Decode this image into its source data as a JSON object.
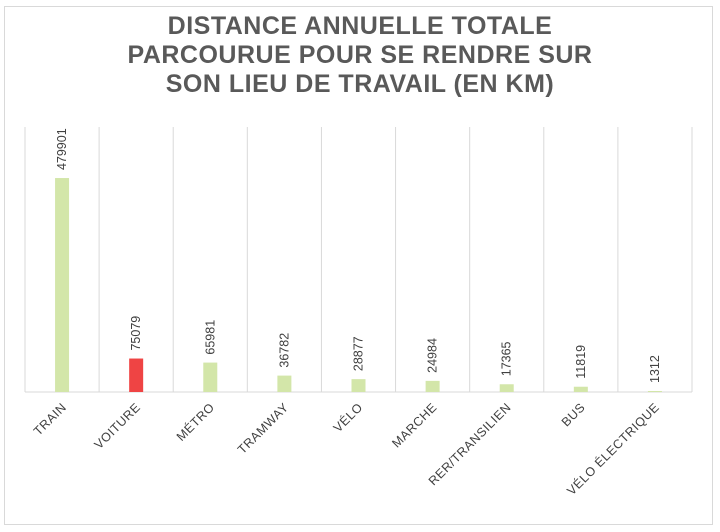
{
  "chart_data": {
    "type": "bar",
    "title_lines": [
      "DISTANCE ANNUELLE TOTALE",
      "PARCOURUE POUR SE RENDRE SUR",
      "SON LIEU DE TRAVAIL (EN KM)"
    ],
    "categories": [
      "TRAIN",
      "VOITURE",
      "MÉTRO",
      "TRAMWAY",
      "VÉLO",
      "MARCHE",
      "RER/TRANSILIEN",
      "BUS",
      "VÉLO ÉLECTRIQUE"
    ],
    "values": [
      479901,
      75079,
      65981,
      36782,
      28877,
      24984,
      17365,
      11819,
      1312
    ],
    "bar_colors": [
      "#d3e6a9",
      "#ef4444",
      "#d3e6a9",
      "#d3e6a9",
      "#d3e6a9",
      "#d3e6a9",
      "#d3e6a9",
      "#d3e6a9",
      "#d3e6a9"
    ],
    "ylim": [
      0,
      480000
    ],
    "grid": "vertical category separators",
    "legend": "none",
    "data_labels": true,
    "colors": {
      "title": "#595959",
      "default_bar": "#d3e6a9",
      "highlight_bar": "#ef4444",
      "grid": "#d9d9d9",
      "text": "#404040"
    }
  }
}
